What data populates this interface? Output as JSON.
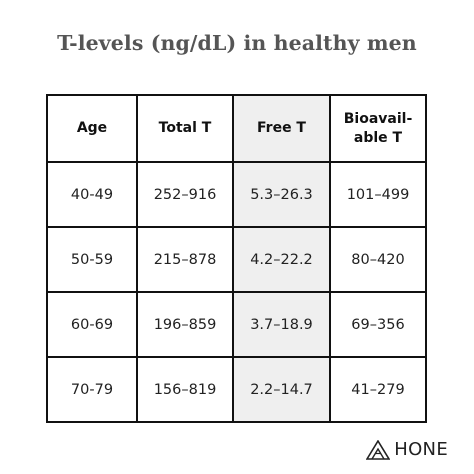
{
  "title": "T-levels (ng/dL) in healthy men",
  "table": {
    "headers": [
      "Age",
      "Total T",
      "Free T",
      "Bioavail-able T"
    ],
    "header_lines": {
      "bioavailable_line1": "Bioavail-",
      "bioavailable_line2": "able T"
    },
    "rows": [
      [
        "40-49",
        "252–916",
        "5.3–26.3",
        "101–499"
      ],
      [
        "50-59",
        "215–878",
        "4.2–22.2",
        "80–420"
      ],
      [
        "60-69",
        "196–859",
        "3.7–18.9",
        "69–356"
      ],
      [
        "70-79",
        "156–819",
        "2.2–14.7",
        "41–279"
      ]
    ]
  },
  "brand": {
    "name": "HONE",
    "logo_icon": "mountain-triangle-icon"
  },
  "colors": {
    "shaded_column": "#efefef",
    "border": "#111111",
    "title_text": "#555555"
  }
}
